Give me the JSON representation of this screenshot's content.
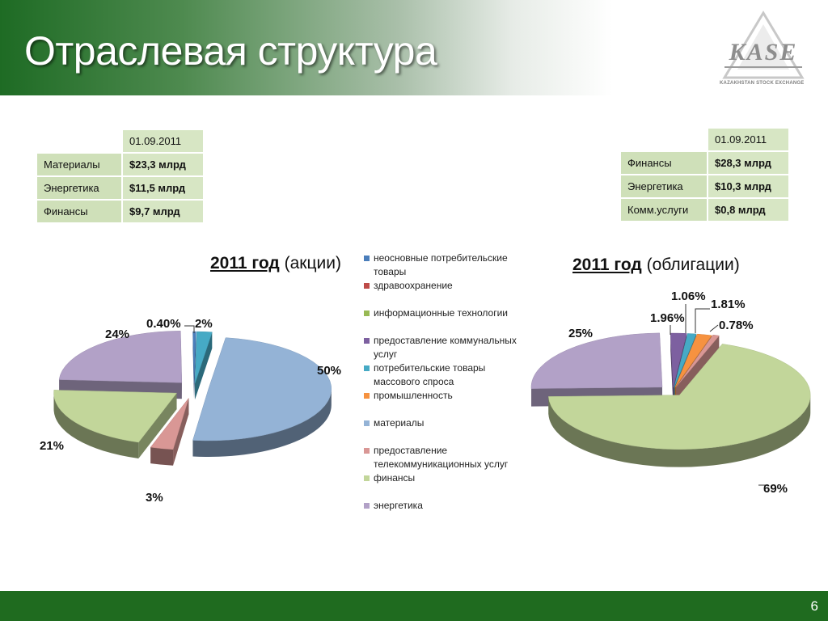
{
  "slide": {
    "title": "Отраслевая структура",
    "page_number": "6"
  },
  "logo": {
    "text": "KASE",
    "tagline": "KAZAKHSTAN STOCK EXCHANGE"
  },
  "table_left": {
    "date": "01.09.2011",
    "rows": [
      {
        "label": "Материалы",
        "value": "$23,3 млрд"
      },
      {
        "label": "Энергетика",
        "value": "$11,5 млрд"
      },
      {
        "label": "Финансы",
        "value": "$9,7 млрд"
      }
    ]
  },
  "table_right": {
    "date": "01.09.2011",
    "rows": [
      {
        "label": "Финансы",
        "value": "$28,3 млрд"
      },
      {
        "label": "Энергетика",
        "value": "$10,3 млрд"
      },
      {
        "label": "Комм.услуги",
        "value": "$0,8 млрд"
      }
    ]
  },
  "chart_data": [
    {
      "type": "pie",
      "title_year": "2011 год",
      "title_rest": "(акции)",
      "categories": [
        "неосновные потребительские товары",
        "здравоохранение",
        "информационные технологии",
        "предоставление коммунальных услуг",
        "потребительские товары массового спроса",
        "промышленность",
        "материалы",
        "предоставление телекоммуникационных услуг",
        "финансы",
        "энергетика"
      ],
      "values": [
        0.4,
        0,
        0,
        0,
        2,
        0,
        50,
        3,
        21,
        24
      ],
      "labels": [
        "0.40%",
        "2%",
        "50%",
        "3%",
        "21%",
        "24%"
      ],
      "legend_position": "right"
    },
    {
      "type": "pie",
      "title_year": "2011 год",
      "title_rest": "(облигации)",
      "categories": [
        "неосновные потребительские товары",
        "здравоохранение",
        "информационные технологии",
        "предоставление коммунальных услуг",
        "потребительские товары массового спроса",
        "промышленность",
        "материалы",
        "предоставление телекоммуникационных услуг",
        "финансы",
        "энергетика"
      ],
      "values": [
        0,
        0,
        0,
        1.96,
        1.06,
        1.81,
        0,
        0.78,
        69,
        25
      ],
      "labels": [
        "1.96%",
        "1.06%",
        "1.81%",
        "0.78%",
        "69%",
        "25%"
      ]
    }
  ],
  "legend": [
    {
      "label": "неосновные потребительские товары",
      "color": "#4a7ebb"
    },
    {
      "label": "здравоохранение",
      "color": "#be4b48"
    },
    {
      "label": "информационные технологии",
      "color": "#98b954"
    },
    {
      "label": "предоставление коммунальных услуг",
      "color": "#7d60a0"
    },
    {
      "label": "потребительские товары массового спроса",
      "color": "#46aac5"
    },
    {
      "label": "промышленность",
      "color": "#f69240"
    },
    {
      "label": "материалы",
      "color": "#94b3d6"
    },
    {
      "label": "предоставление телекоммуникационных услуг",
      "color": "#d99795"
    },
    {
      "label": "финансы",
      "color": "#c2d69a"
    },
    {
      "label": "энергетика",
      "color": "#b2a1c7"
    }
  ],
  "colors": {
    "header_green": "#1e6b24",
    "footer_green": "#1f6b1f",
    "table_fill": "#d7e6c4"
  }
}
